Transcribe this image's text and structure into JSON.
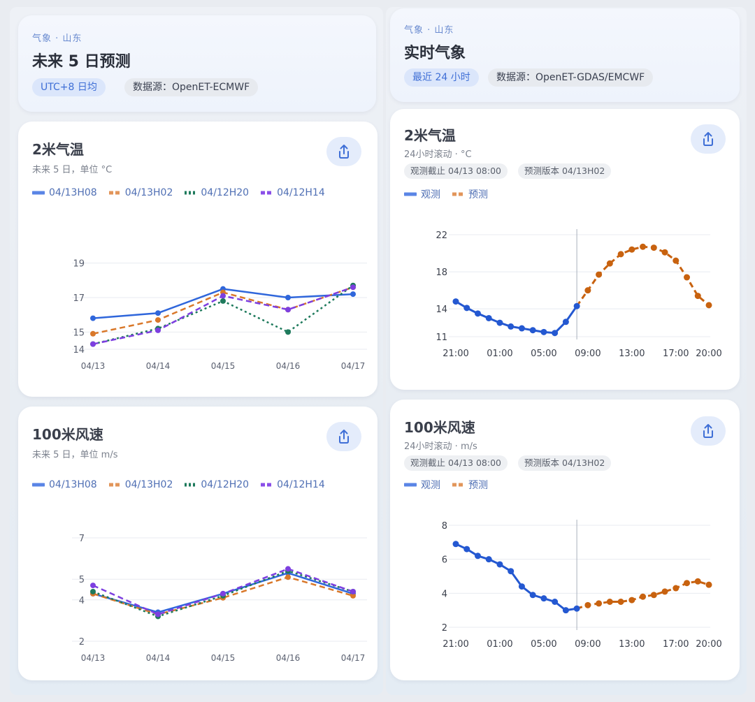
{
  "left": {
    "header": {
      "eyebrow": "气象 · 山东",
      "title": "未来 5 日预测",
      "pill_tz": "UTC+8 日均",
      "pill_source": "数据源：OpenET-ECMWF"
    },
    "temp_card": {
      "title": "2米气温",
      "subtitle": "未来 5 日，单位 °C",
      "legend": [
        "04/13H08",
        "04/13H02",
        "04/12H20",
        "04/12H14"
      ]
    },
    "wind_card": {
      "title": "100米风速",
      "subtitle": "未来 5 日，单位 m/s",
      "legend": [
        "04/13H08",
        "04/13H02",
        "04/12H20",
        "04/12H14"
      ]
    }
  },
  "right": {
    "header": {
      "eyebrow": "气象 · 山东",
      "title": "实时气象",
      "pill_range": "最近 24 小时",
      "pill_source": "数据源：OpenET-GDAS/EMCWF"
    },
    "temp_card": {
      "title": "2米气温",
      "subtitle": "24小时滚动 · °C",
      "tag_obs": "观测截止 04/13 08:00",
      "tag_ver": "预测版本 04/13H02",
      "legend": [
        "观测",
        "预测"
      ]
    },
    "wind_card": {
      "title": "100米风速",
      "subtitle": "24小时滚动 · m/s",
      "tag_obs": "观测截止 04/13 08:00",
      "tag_ver": "预测版本 04/13H02",
      "legend": [
        "观测",
        "预测"
      ]
    }
  },
  "icons": {
    "share": "share-icon"
  },
  "colors": {
    "s1": "#2f66db",
    "s2": "#d9782a",
    "s3": "#1e7a5c",
    "s4": "#7d3fe0",
    "obs": "#2458d1",
    "fc": "#c8620f"
  },
  "chart_data": [
    {
      "id": "left-temp",
      "type": "line",
      "title": "2米气温",
      "categories": [
        "04/13",
        "04/14",
        "04/15",
        "04/16",
        "04/17"
      ],
      "yticks": [
        "14",
        "15",
        "17",
        "19"
      ],
      "ylim": [
        14,
        20
      ],
      "series": [
        {
          "name": "04/13H08",
          "values": [
            15.8,
            16.1,
            17.5,
            17.0,
            17.2
          ],
          "style": "solid",
          "color": "#2f66db"
        },
        {
          "name": "04/13H02",
          "values": [
            14.9,
            15.7,
            17.3,
            16.3,
            17.6
          ],
          "style": "dash",
          "color": "#d9782a"
        },
        {
          "name": "04/12H20",
          "values": [
            14.3,
            15.2,
            16.8,
            15.0,
            17.7
          ],
          "style": "dot",
          "color": "#1e7a5c"
        },
        {
          "name": "04/12H14",
          "values": [
            14.3,
            15.1,
            17.1,
            16.3,
            17.6
          ],
          "style": "dash",
          "color": "#7d3fe0"
        }
      ]
    },
    {
      "id": "left-wind",
      "type": "line",
      "title": "100米风速",
      "categories": [
        "04/13",
        "04/14",
        "04/15",
        "04/16",
        "04/17"
      ],
      "yticks": [
        "2",
        "4",
        "5",
        "7"
      ],
      "ylim": [
        2,
        7
      ],
      "series": [
        {
          "name": "04/13H08",
          "values": [
            4.3,
            3.4,
            4.3,
            5.3,
            4.3
          ],
          "style": "solid",
          "color": "#2f66db"
        },
        {
          "name": "04/13H02",
          "values": [
            4.3,
            3.3,
            4.1,
            5.1,
            4.2
          ],
          "style": "dash",
          "color": "#d9782a"
        },
        {
          "name": "04/12H20",
          "values": [
            4.4,
            3.2,
            4.2,
            5.4,
            4.4
          ],
          "style": "dot",
          "color": "#1e7a5c"
        },
        {
          "name": "04/12H14",
          "values": [
            4.7,
            3.3,
            4.3,
            5.5,
            4.4
          ],
          "style": "dash",
          "color": "#7d3fe0"
        }
      ]
    },
    {
      "id": "right-temp",
      "type": "line",
      "title": "2米气温",
      "xticks": [
        "21:00",
        "01:00",
        "05:00",
        "09:00",
        "13:00",
        "17:00",
        "20:00"
      ],
      "yticks": [
        "11",
        "14",
        "18",
        "22"
      ],
      "ylim": [
        11,
        22
      ],
      "split_hour": 8,
      "obs": {
        "hours": [
          21,
          22,
          23,
          0,
          1,
          2,
          3,
          4,
          5,
          6,
          7,
          8
        ],
        "values": [
          14.8,
          14.1,
          13.5,
          13.0,
          12.5,
          12.1,
          11.9,
          11.7,
          11.5,
          11.4,
          12.6,
          14.3
        ]
      },
      "fc": {
        "hours": [
          8,
          9,
          10,
          11,
          12,
          13,
          14,
          15,
          16,
          17,
          18,
          19,
          20
        ],
        "values": [
          14.3,
          16.0,
          17.7,
          18.9,
          19.9,
          20.4,
          20.7,
          20.6,
          20.1,
          19.2,
          17.4,
          15.4,
          14.4
        ]
      }
    },
    {
      "id": "right-wind",
      "type": "line",
      "title": "100米风速",
      "xticks": [
        "21:00",
        "01:00",
        "05:00",
        "09:00",
        "13:00",
        "17:00",
        "20:00"
      ],
      "yticks": [
        "2",
        "4",
        "6",
        "8"
      ],
      "ylim": [
        2,
        8
      ],
      "split_hour": 8,
      "obs": {
        "hours": [
          21,
          22,
          23,
          0,
          1,
          2,
          3,
          4,
          5,
          6,
          7,
          8
        ],
        "values": [
          6.9,
          6.6,
          6.2,
          6.0,
          5.7,
          5.3,
          4.4,
          3.9,
          3.7,
          3.5,
          3.0,
          3.1
        ]
      },
      "fc": {
        "hours": [
          8,
          9,
          10,
          11,
          12,
          13,
          14,
          15,
          16,
          17,
          18,
          19,
          20
        ],
        "values": [
          3.1,
          3.3,
          3.4,
          3.5,
          3.5,
          3.6,
          3.8,
          3.9,
          4.1,
          4.3,
          4.6,
          4.7,
          4.5
        ]
      }
    }
  ]
}
